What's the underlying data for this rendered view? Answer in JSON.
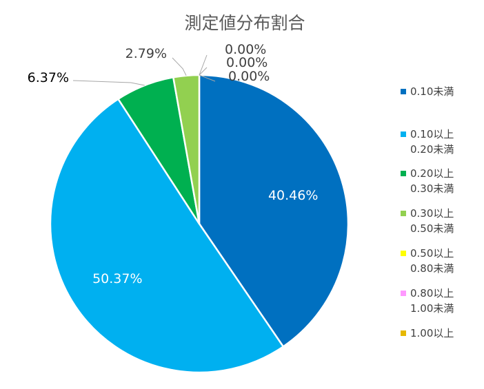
{
  "chart_data": {
    "type": "pie",
    "title": "測定値分布割合",
    "categories": [
      "0.10未満",
      "0.10以上 0.20未満",
      "0.20以上 0.30未満",
      "0.30以上 0.50未満",
      "0.50以上 0.80未満",
      "0.80以上 1.00未満",
      "1.00以上"
    ],
    "legend_lines": [
      [
        "0.10未満"
      ],
      [
        "0.10以上",
        "0.20未満"
      ],
      [
        "0.20以上",
        "0.30未満"
      ],
      [
        "0.30以上",
        "0.50未満"
      ],
      [
        "0.50以上",
        "0.80未満"
      ],
      [
        "0.80以上",
        "1.00未満"
      ],
      [
        "1.00以上"
      ]
    ],
    "values": [
      40.46,
      50.37,
      6.37,
      2.79,
      0.0,
      0.0,
      0.0
    ],
    "labels": [
      "40.46%",
      "50.37%",
      "6.37%",
      "2.79%",
      "0.00%",
      "0.00%",
      "0.00%"
    ],
    "colors": [
      "#0070C0",
      "#00B0F0",
      "#00B050",
      "#92D050",
      "#FFFF00",
      "#FF99FF",
      "#E6B800"
    ],
    "legend_position": "right"
  }
}
